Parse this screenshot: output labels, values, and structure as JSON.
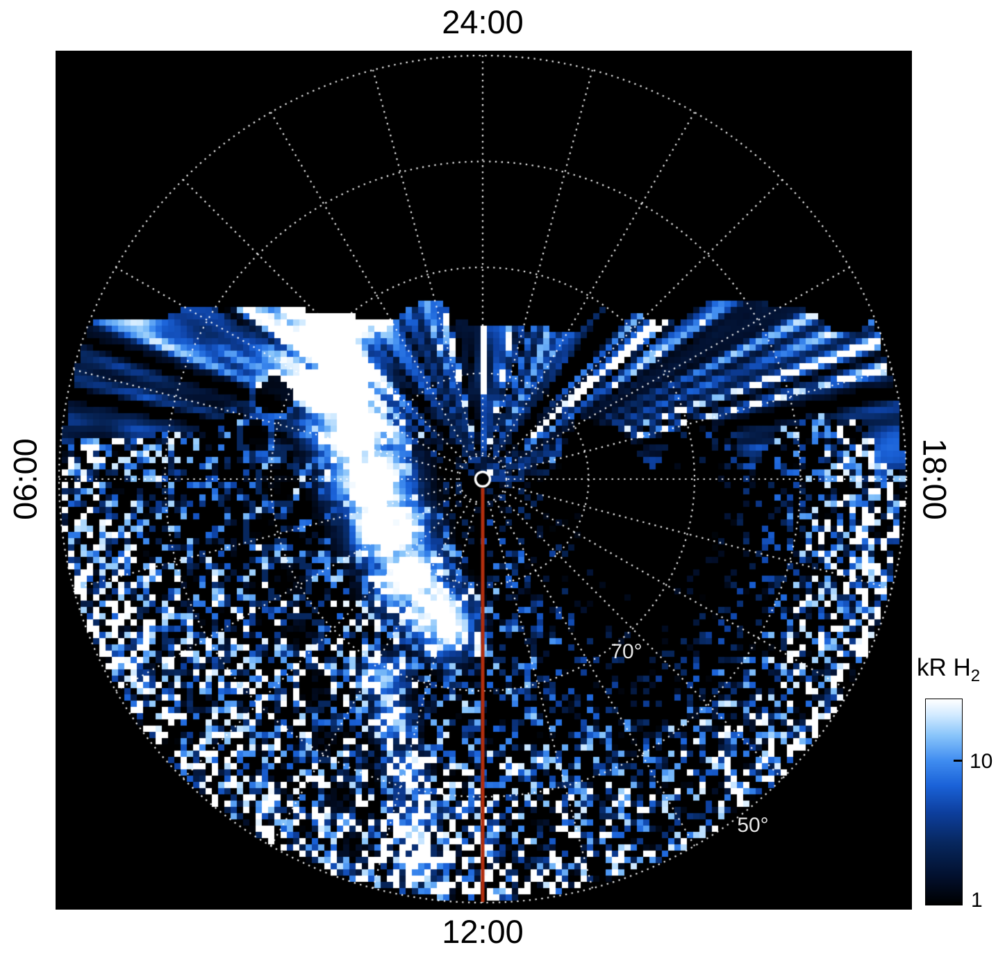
{
  "figure": {
    "bg": "#ffffff",
    "plot_bg": "#000000",
    "grid_color": "rgba(255,255,255,0.95)",
    "meridian_color": "#b22e0e",
    "text_color": "#000000",
    "ring_label_color": "rgba(255,255,255,0.9)"
  },
  "labels": {
    "top": "24:00",
    "right": "18:00",
    "bottom": "12:00",
    "left": "06:00",
    "lat_70": "70°",
    "lat_50": "50°",
    "colorbar_title_main": "kR H",
    "colorbar_title_sub": "2",
    "colorbar_tick_upper": "10",
    "colorbar_tick_lower": "1"
  },
  "chart_data": {
    "type": "heatmap",
    "projection": "polar",
    "content": "Polar map of auroral H2 emission brightness (kilorayleigh) versus latitude and local time",
    "angular_axis": {
      "quantity": "local time",
      "tick_labels": [
        "24:00",
        "06:00",
        "12:00",
        "18:00"
      ],
      "tick_locations": [
        "top",
        "left",
        "bottom",
        "right"
      ],
      "spoke_interval": "1 hour (15 degrees)"
    },
    "radial_axis": {
      "quantity": "latitude",
      "center_deg": 90,
      "outer_ring_deg": 50,
      "ring_interval_deg": 10,
      "labeled_rings": [
        "70°",
        "50°"
      ]
    },
    "colorbar": {
      "label": "kR H2",
      "scale": "log",
      "min_value": 1,
      "tick_values": [
        10,
        1
      ],
      "orientation": "vertical",
      "position": "lower right"
    },
    "palette": [
      {
        "pos": 0.0,
        "color": "#000000"
      },
      {
        "pos": 0.14,
        "color": "#02102e"
      },
      {
        "pos": 0.3,
        "color": "#07275e"
      },
      {
        "pos": 0.45,
        "color": "#0d3f9e"
      },
      {
        "pos": 0.58,
        "color": "#1a62d8"
      },
      {
        "pos": 0.7,
        "color": "#3f8cf0"
      },
      {
        "pos": 0.82,
        "color": "#86c3fa"
      },
      {
        "pos": 0.92,
        "color": "#cfe9ff"
      },
      {
        "pos": 1.0,
        "color": "#ffffff"
      }
    ],
    "features": [
      "black no-data sector on the nightside (toward 24:00) above the dawn-dusk terminator",
      "band of bright blue-white radial streaks along the day-night terminator from 06:00 through 24:00 to 18:00",
      "intense white emission patch near 09:00-10:30 local time between about 75 and 60 degrees latitude",
      "faint speckled emission covering the dayside hemisphere toward 12:00",
      "dark-red meridian line along 12:00 local time from the pole to the 50 degree ring",
      "small white circle marking the pole at the center",
      "dotted white polar grid with latitude rings every 10 degrees and hourly local-time spokes"
    ]
  }
}
